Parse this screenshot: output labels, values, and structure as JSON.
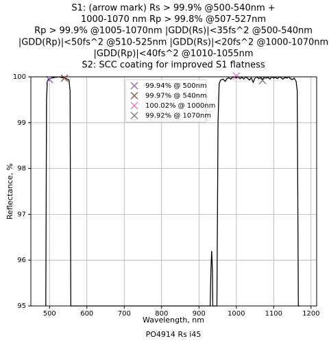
{
  "chart_data": {
    "type": "line",
    "title": [
      "S1: (arrow mark) Rs > 99.9% @500-540nm +",
      "1000-1070 nm  Rp > 99.8% @507-527nm",
      "Rp > 99.9% @1005-1070nm |GDD(Rs)|<35fs^2 @500-540nm",
      "|GDD(Rp)|<50fs^2 @510-525nm |GDD(Rs)|<20fs^2 @1000-1070nm",
      "|GDD(Rp)|<40fs^2 @1010-1055nm",
      "S2: SCC coating for improved S1 flatness"
    ],
    "x_label": "Wavelength, nm",
    "y_label": "Reflectance, %",
    "caption": "PO4914 Rs i45",
    "xlim": [
      450,
      1215
    ],
    "ylim": [
      95,
      100
    ],
    "xticks": [
      500,
      600,
      700,
      800,
      900,
      1000,
      1100,
      1200
    ],
    "yticks": [
      95,
      96,
      97,
      98,
      99,
      100
    ],
    "curve": {
      "color": "#000000",
      "x": [
        490,
        492,
        494,
        497,
        505,
        515,
        525,
        535,
        545,
        552,
        555,
        557,
        600,
        930,
        932,
        934,
        936,
        937,
        948,
        951,
        954,
        958,
        965,
        970,
        975,
        980,
        985,
        990,
        995,
        1000,
        1005,
        1010,
        1015,
        1020,
        1025,
        1030,
        1035,
        1040,
        1045,
        1050,
        1055,
        1060,
        1065,
        1070,
        1075,
        1080,
        1085,
        1090,
        1095,
        1100,
        1105,
        1110,
        1115,
        1120,
        1125,
        1130,
        1135,
        1140,
        1145,
        1150,
        1155,
        1160,
        1163,
        1166,
        1170
      ],
      "values": [
        95,
        99.5,
        99.9,
        99.95,
        99.97,
        99.99,
        100,
        99.98,
        99.96,
        99.93,
        99.7,
        95,
        95,
        95,
        95.8,
        96.2,
        95.8,
        95,
        95,
        99,
        99.85,
        99.93,
        99.95,
        99.9,
        99.96,
        99.98,
        99.95,
        99.99,
        100,
        99.97,
        100,
        99.96,
        99.99,
        99.95,
        100,
        99.97,
        99.93,
        99.98,
        99.88,
        99.97,
        100,
        99.96,
        99.99,
        99.94,
        100,
        99.97,
        99.99,
        99.95,
        100,
        99.97,
        99.99,
        99.96,
        100,
        99.98,
        99.95,
        99.99,
        99.97,
        100,
        99.96,
        99.94,
        99.97,
        99.9,
        99.7,
        95,
        95
      ]
    },
    "series": [
      {
        "name": "99.94% @ 500nm",
        "color": "#9467bd",
        "x": [
          500
        ],
        "values": [
          99.94
        ]
      },
      {
        "name": "99.97% @ 540nm",
        "color": "#8c564b",
        "x": [
          540
        ],
        "values": [
          99.97
        ]
      },
      {
        "name": "100.02% @ 1000nm",
        "color": "#e377c2",
        "x": [
          1000
        ],
        "values": [
          100.02
        ]
      },
      {
        "name": "99.92% @ 1070nm",
        "color": "#7f7f7f",
        "x": [
          1070
        ],
        "values": [
          99.92
        ]
      }
    ]
  }
}
